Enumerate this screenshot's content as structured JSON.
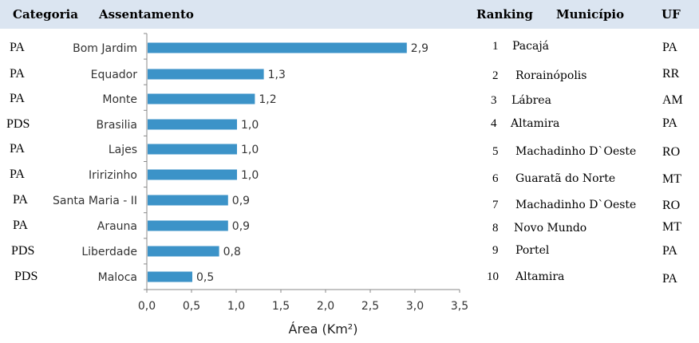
{
  "header": {
    "categoria": "Categoria",
    "assentamento": "Assentamento",
    "ranking": "Ranking",
    "municipio": "Município",
    "uf": "UF"
  },
  "categories_column": [
    "PA",
    "PA",
    "PA",
    "PDS",
    "PA",
    "PA",
    "PA",
    "PA",
    "PDS",
    "PDS"
  ],
  "ranking_table": [
    {
      "rank": "1",
      "municipio": "Pacajá",
      "uf": "PA"
    },
    {
      "rank": "2",
      "municipio": "Rorainópolis",
      "uf": "RR"
    },
    {
      "rank": "3",
      "municipio": "Lábrea",
      "uf": "AM"
    },
    {
      "rank": "4",
      "municipio": "Altamira",
      "uf": "PA"
    },
    {
      "rank": "5",
      "municipio": "Machadinho D`Oeste",
      "uf": "RO"
    },
    {
      "rank": "6",
      "municipio": "Guaratã do Norte",
      "uf": "MT"
    },
    {
      "rank": "7",
      "municipio": "Machadinho D`Oeste",
      "uf": "RO"
    },
    {
      "rank": "8",
      "municipio": "Novo Mundo",
      "uf": "MT"
    },
    {
      "rank": "9",
      "municipio": "Portel",
      "uf": "PA"
    },
    {
      "rank": "10",
      "municipio": "Altamira",
      "uf": "PA"
    }
  ],
  "chart_data": {
    "type": "bar",
    "orientation": "horizontal",
    "categories": [
      "Bom Jardim",
      "Equador",
      "Monte",
      "Brasilia",
      "Lajes",
      "Iririzinho",
      "Santa Maria - II",
      "Arauna",
      "Liberdade",
      "Maloca"
    ],
    "values": [
      2.9,
      1.3,
      1.2,
      1.0,
      1.0,
      1.0,
      0.9,
      0.9,
      0.8,
      0.5
    ],
    "value_labels": [
      "2,9",
      "1,3",
      "1,2",
      "1,0",
      "1,0",
      "1,0",
      "0,9",
      "0,9",
      "0,8",
      "0,5"
    ],
    "xlabel": "Área (Km²)",
    "xlim": [
      0,
      3.5
    ],
    "xticks": [
      "0,0",
      "0,5",
      "1,0",
      "1,5",
      "2,0",
      "2,5",
      "3,0",
      "3,5"
    ],
    "bar_color": "#3c93c8",
    "grid": false
  }
}
